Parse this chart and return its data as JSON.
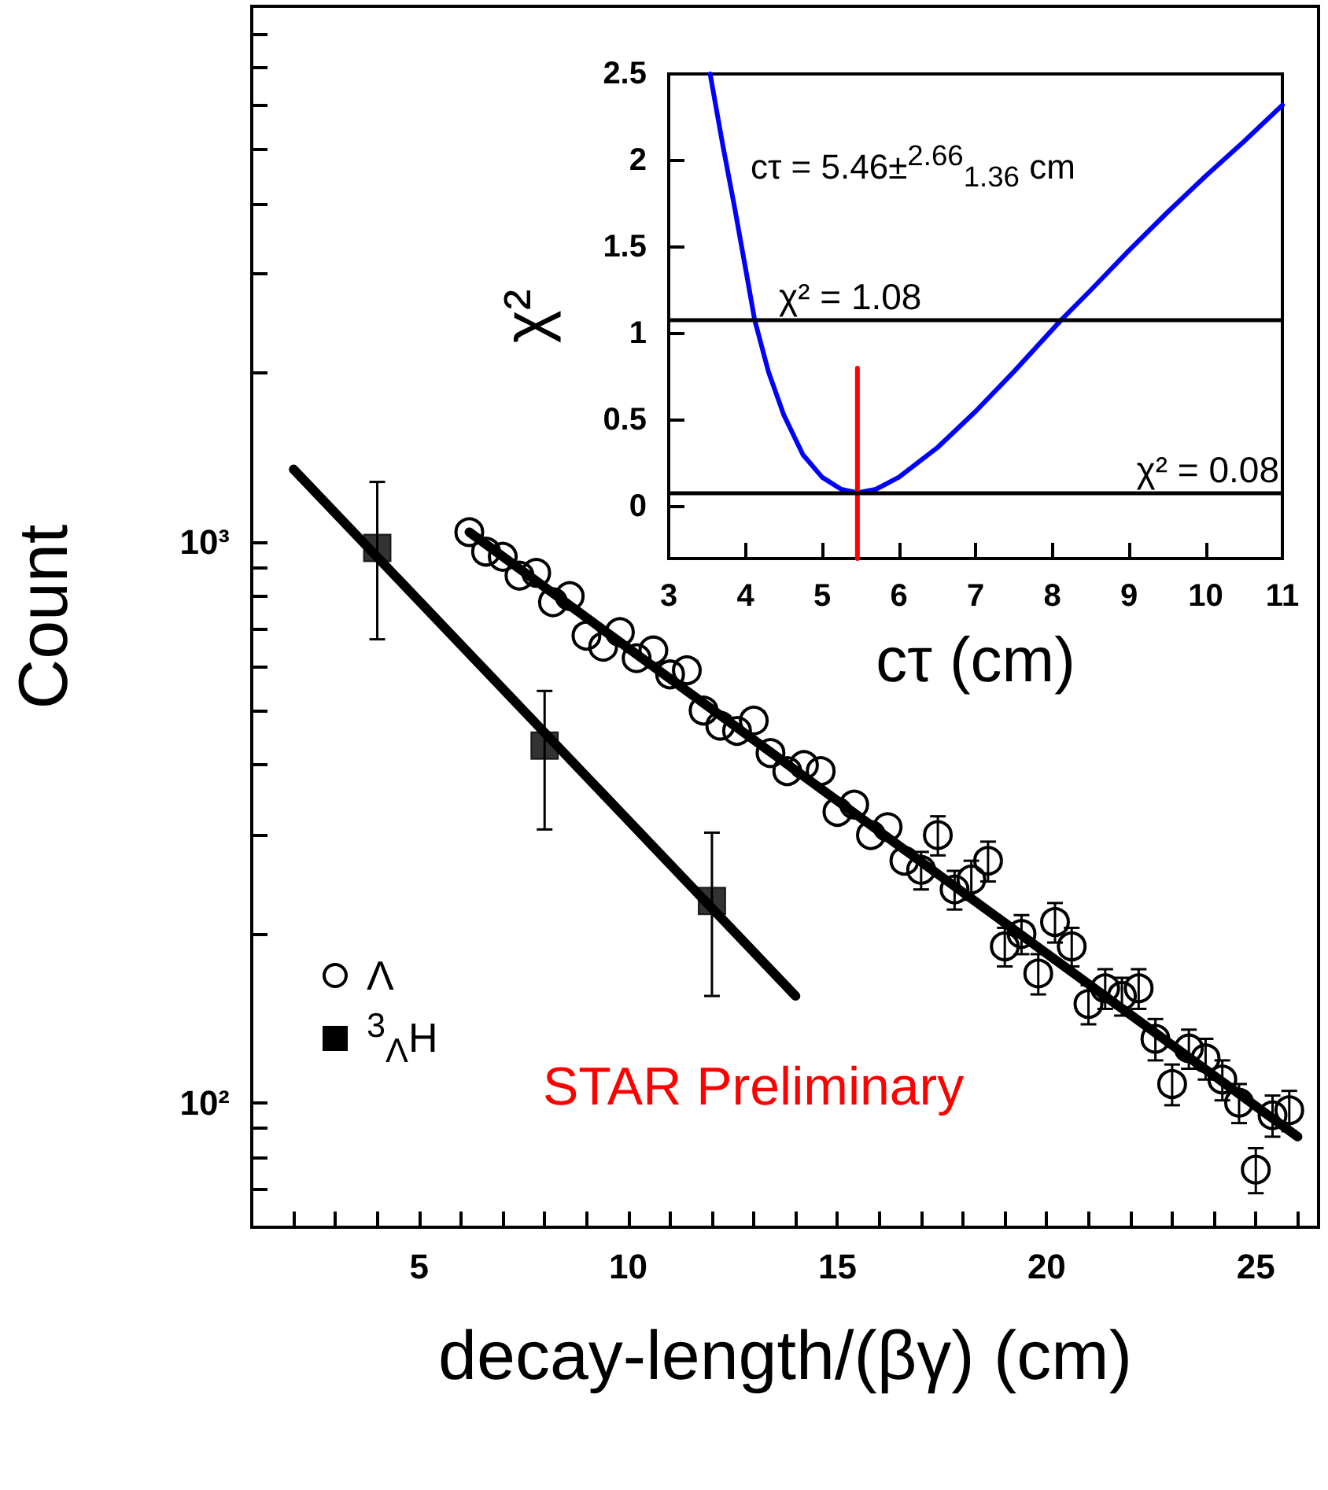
{
  "chart_data": [
    {
      "type": "scatter",
      "xlabel": "decay-length/(βγ) (cm)",
      "ylabel": "Count",
      "log": "y",
      "xlim": [
        1,
        26.5
      ],
      "ylim": [
        60,
        9000
      ],
      "xticks": [
        {
          "value": 2,
          "label": null
        },
        {
          "value": 3,
          "label": null
        },
        {
          "value": 4,
          "label": null
        },
        5,
        {
          "value": 6,
          "label": null
        },
        {
          "value": 7,
          "label": null
        },
        {
          "value": 8,
          "label": null
        },
        {
          "value": 9,
          "label": null
        },
        10,
        {
          "value": 11,
          "label": null
        },
        {
          "value": 12,
          "label": null
        },
        {
          "value": 13,
          "label": null
        },
        {
          "value": 14,
          "label": null
        },
        15,
        {
          "value": 16,
          "label": null
        },
        {
          "value": 17,
          "label": null
        },
        {
          "value": 18,
          "label": null
        },
        {
          "value": 19,
          "label": null
        },
        20,
        {
          "value": 21,
          "label": null
        },
        {
          "value": 22,
          "label": null
        },
        {
          "value": 23,
          "label": null
        },
        {
          "value": 24,
          "label": null
        },
        25,
        {
          "value": 26,
          "label": null
        }
      ],
      "yticks": [
        {
          "value": 70,
          "label": null
        },
        {
          "value": 80,
          "label": null
        },
        {
          "value": 90,
          "label": null
        },
        {
          "value": 100,
          "label": "10²"
        },
        {
          "value": 200,
          "label": null
        },
        {
          "value": 300,
          "label": null
        },
        {
          "value": 400,
          "label": null
        },
        {
          "value": 500,
          "label": null
        },
        {
          "value": 600,
          "label": null
        },
        {
          "value": 700,
          "label": null
        },
        {
          "value": 800,
          "label": null
        },
        {
          "value": 900,
          "label": null
        },
        {
          "value": 1000,
          "label": "10³"
        },
        {
          "value": 2000,
          "label": null
        },
        {
          "value": 3000,
          "label": null
        },
        {
          "value": 4000,
          "label": null
        },
        {
          "value": 5000,
          "label": null
        },
        {
          "value": 6000,
          "label": null
        },
        {
          "value": 7000,
          "label": null
        },
        {
          "value": 8000,
          "label": null
        }
      ],
      "legend": "bottom left",
      "grid": false,
      "annotations": [
        "STAR Preliminary"
      ],
      "series": [
        {
          "name": "Λ",
          "marker": "circle",
          "color": "#000000",
          "x": [
            6.2,
            6.6,
            7.0,
            7.4,
            7.8,
            8.2,
            8.6,
            9.0,
            9.4,
            9.8,
            10.2,
            10.6,
            11.0,
            11.4,
            11.8,
            12.2,
            12.6,
            13.0,
            13.4,
            13.8,
            14.2,
            14.6,
            15.0,
            15.4,
            15.8,
            16.2,
            16.6,
            17.0,
            17.4,
            17.8,
            18.2,
            18.6,
            19.0,
            19.4,
            19.8,
            20.2,
            20.6,
            21.0,
            21.4,
            21.8,
            22.2,
            22.6,
            23.0,
            23.4,
            23.8,
            24.2,
            24.6,
            25.0,
            25.4,
            25.8
          ],
          "values": [
            1040,
            960,
            940,
            870,
            880,
            780,
            800,
            680,
            650,
            690,
            620,
            640,
            580,
            590,
            500,
            470,
            460,
            480,
            420,
            390,
            400,
            390,
            330,
            340,
            300,
            310,
            270,
            260,
            300,
            240,
            250,
            270,
            190,
            200,
            170,
            210,
            190,
            150,
            160,
            155,
            160,
            130,
            108,
            125,
            120,
            110,
            100,
            76,
            95,
            97
          ],
          "errors": [
            null,
            null,
            null,
            null,
            null,
            null,
            null,
            null,
            null,
            null,
            null,
            null,
            null,
            null,
            null,
            null,
            null,
            null,
            null,
            null,
            null,
            null,
            null,
            null,
            null,
            null,
            null,
            20,
            24,
            19,
            20,
            22,
            15,
            16,
            14,
            17,
            15,
            12,
            13,
            12,
            13,
            11,
            9,
            10,
            10,
            9,
            8,
            7,
            8,
            8
          ]
        },
        {
          "name": "$^{3}$$_{Λ}$H",
          "marker": "square",
          "color": "#000000",
          "x": [
            4,
            8,
            12
          ],
          "values": [
            975,
            433,
            229
          ],
          "errors": [
            [
              670,
              1278
            ],
            [
              307,
              542
            ],
            [
              155,
              303
            ]
          ]
        },
        {
          "type": "line",
          "marker": "none",
          "color": "#000000",
          "x": [
            6.2,
            26
          ],
          "values": [
            1040,
            87
          ]
        },
        {
          "type": "line",
          "marker": "none",
          "color": "#000000",
          "x": [
            2,
            14
          ],
          "values": [
            1346,
            155
          ]
        }
      ]
    },
    {
      "type": "line",
      "xlabel": "cτ (cm)",
      "ylabel": "χ²",
      "xlim": [
        3,
        11
      ],
      "ylim": [
        -0.3,
        2.5
      ],
      "xticks": [
        3,
        4,
        5,
        6,
        7,
        8,
        9,
        10,
        11
      ],
      "yticks": [
        0,
        0.5,
        1,
        1.5,
        2,
        2.5
      ],
      "grid": false,
      "marker": "none",
      "annotations": [
        "cτ = 5.46±$^{2.66}$$_{1.36}$ cm"
      ],
      "ref_lines": [
        {
          "axis": "y",
          "value": 1.08,
          "label": "χ² = 1.08",
          "color": "#000000"
        },
        {
          "axis": "y",
          "value": 0.08,
          "label": "χ² = 0.08",
          "color": "#000000"
        }
      ],
      "series": [
        {
          "color": "#0000ff",
          "x": [
            3.54,
            3.7,
            3.85,
            4.0,
            4.12,
            4.3,
            4.5,
            4.75,
            5.0,
            5.25,
            5.46,
            5.7,
            6.0,
            6.5,
            7.0,
            7.5,
            8.12,
            8.5,
            9.0,
            9.5,
            10.0,
            10.5,
            11.0
          ],
          "values": [
            2.5,
            2.1,
            1.75,
            1.38,
            1.08,
            0.78,
            0.53,
            0.3,
            0.17,
            0.1,
            0.08,
            0.1,
            0.17,
            0.34,
            0.55,
            0.78,
            1.08,
            1.25,
            1.48,
            1.7,
            1.91,
            2.11,
            2.32
          ]
        },
        {
          "color": "#ff0000",
          "x": [
            5.46,
            5.46
          ],
          "values": [
            -0.3,
            0.8
          ]
        }
      ]
    }
  ]
}
